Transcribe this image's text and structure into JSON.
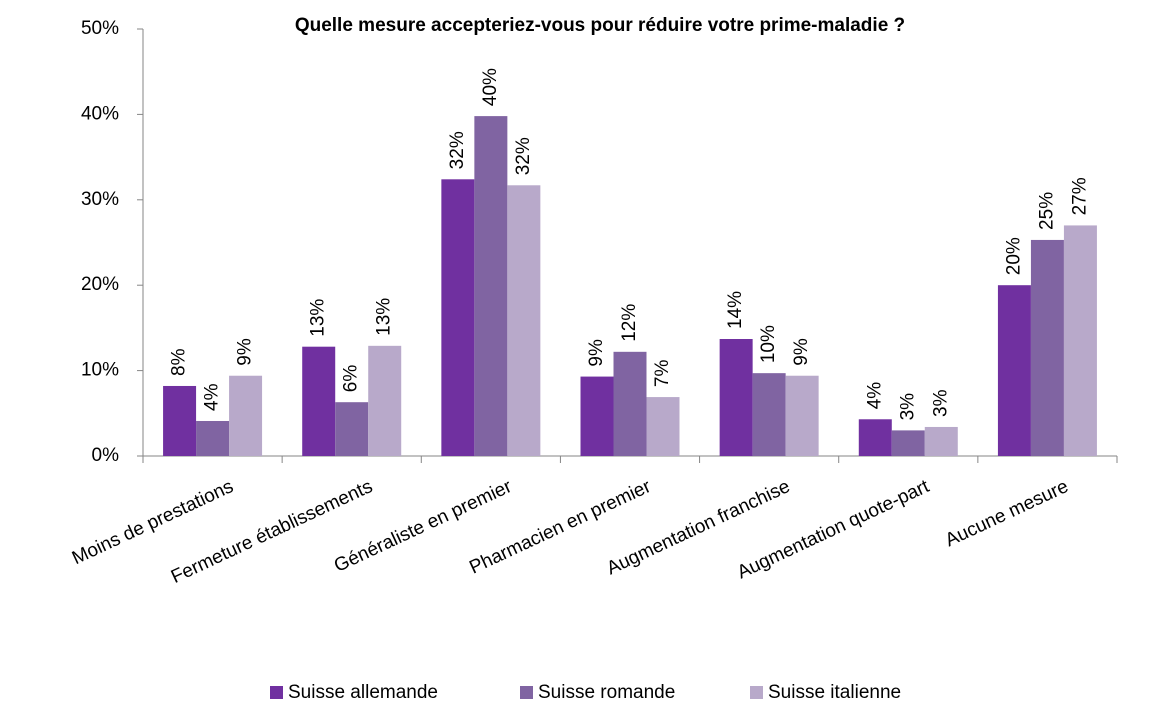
{
  "chart_data": {
    "type": "bar",
    "title": "Quelle mesure accepteriez-vous pour réduire votre prime-maladie ?",
    "categories": [
      "Moins de prestations",
      "Fermeture établissements",
      "Généraliste en premier",
      "Pharmacien en premier",
      "Augmentation franchise",
      "Augmentation quote-part",
      "Aucune mesure"
    ],
    "series": [
      {
        "name": "Suisse allemande",
        "color": "#7030a0",
        "values": [
          8.2,
          12.8,
          32.4,
          9.3,
          13.7,
          4.3,
          20.0
        ],
        "value_labels": [
          "8%",
          "13%",
          "32%",
          "9%",
          "14%",
          "4%",
          "20%"
        ]
      },
      {
        "name": "Suisse romande",
        "color": "#8064a2",
        "values": [
          4.1,
          6.3,
          39.8,
          12.2,
          9.7,
          3.0,
          25.3
        ],
        "value_labels": [
          "4%",
          "6%",
          "40%",
          "12%",
          "10%",
          "3%",
          "25%"
        ]
      },
      {
        "name": "Suisse italienne",
        "color": "#b8a9ca",
        "values": [
          9.4,
          12.9,
          31.7,
          6.9,
          9.4,
          3.4,
          27.0
        ],
        "value_labels": [
          "9%",
          "13%",
          "32%",
          "7%",
          "9%",
          "3%",
          "27%"
        ]
      }
    ],
    "ylim": [
      0,
      50
    ],
    "yticks": [
      {
        "value": 0,
        "label": "0%"
      },
      {
        "value": 10,
        "label": "10%"
      },
      {
        "value": 20,
        "label": "20%"
      },
      {
        "value": 30,
        "label": "30%"
      },
      {
        "value": 40,
        "label": "40%"
      },
      {
        "value": 50,
        "label": "50%"
      }
    ],
    "legend": "bottom"
  }
}
